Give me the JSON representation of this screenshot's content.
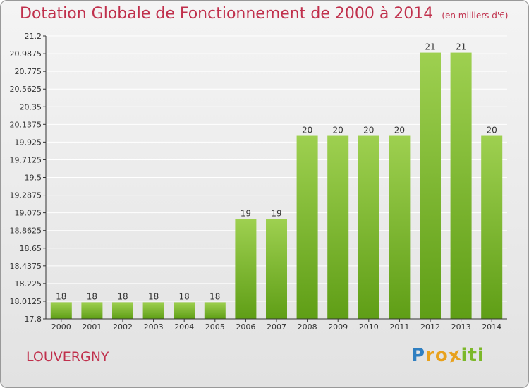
{
  "title": "Dotation Globale de Fonctionnement de 2000 à 2014",
  "subtitle": "(en milliers d'€)",
  "commune": "LOUVERGNY",
  "logo": {
    "letters": [
      "P",
      "r",
      "o",
      "x",
      "i",
      "t",
      "i"
    ],
    "colors": [
      "#2f7fc1",
      "#e8a11c",
      "#e8a11c",
      "#e8a11c",
      "#7cb829",
      "#7cb829",
      "#7cb829"
    ]
  },
  "colors": {
    "title": "#c0304c",
    "bar_light": "#9ed050",
    "bar_dark": "#5f9e16",
    "axis": "#333333",
    "grid": "#ffffff"
  },
  "chart_data": {
    "type": "bar",
    "title": "Dotation Globale de Fonctionnement de 2000 à 2014",
    "xlabel": "",
    "ylabel": "",
    "ylim": [
      17.8,
      21.2
    ],
    "yticks": [
      "21.2",
      "20.9875",
      "20.775",
      "20.5625",
      "20.35",
      "20.1375",
      "19.925",
      "19.7125",
      "19.5",
      "19.2875",
      "19.075",
      "18.8625",
      "18.65",
      "18.4375",
      "18.225",
      "18.0125",
      "17.8"
    ],
    "categories": [
      "2000",
      "2001",
      "2002",
      "2003",
      "2004",
      "2005",
      "2006",
      "2007",
      "2008",
      "2009",
      "2010",
      "2011",
      "2012",
      "2013",
      "2014"
    ],
    "values": [
      18,
      18,
      18,
      18,
      18,
      18,
      19,
      19,
      20,
      20,
      20,
      20,
      21,
      21,
      20
    ],
    "labels": [
      "18",
      "18",
      "18",
      "18",
      "18",
      "18",
      "19",
      "19",
      "20",
      "20",
      "20",
      "20",
      "21",
      "21",
      "20"
    ]
  }
}
